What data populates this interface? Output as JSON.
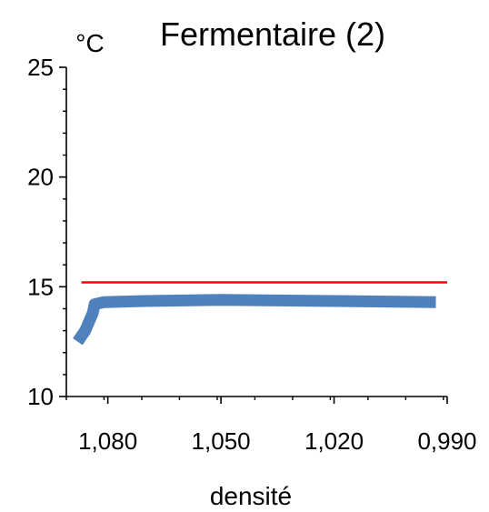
{
  "chart_data": {
    "type": "line",
    "title": "Fermentaire (2)",
    "ylabel": "°C",
    "xlabel": "densité",
    "x_reversed": true,
    "xlim": [
      1.091,
      0.99
    ],
    "ylim": [
      10,
      25
    ],
    "y_ticks": [
      10,
      15,
      20,
      25
    ],
    "y_tick_labels": [
      "10",
      "15",
      "20",
      "25"
    ],
    "x_ticks": [
      1.08,
      1.05,
      1.02,
      0.99
    ],
    "x_tick_labels": [
      "1,080",
      "1,050",
      "1,020",
      "0,990"
    ],
    "grid": false,
    "series": [
      {
        "color": "#4f81bd",
        "x": [
          1.088,
          1.086,
          1.084,
          1.0835,
          1.081,
          1.07,
          1.05,
          1.02,
          0.993
        ],
        "y": [
          12.5,
          13.0,
          13.8,
          14.2,
          14.3,
          14.35,
          14.4,
          14.35,
          14.3
        ]
      },
      {
        "color": "#ff0000",
        "x": [
          1.087,
          0.99
        ],
        "y": [
          15.2,
          15.2
        ]
      }
    ]
  }
}
